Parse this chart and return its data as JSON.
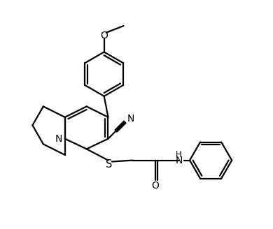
{
  "background_color": "#ffffff",
  "line_color": "#000000",
  "line_width": 1.6,
  "font_size": 9.5,
  "fig_width": 3.9,
  "fig_height": 3.28,
  "dpi": 100,
  "xlim": [
    0,
    10
  ],
  "ylim": [
    0,
    8.5
  ]
}
